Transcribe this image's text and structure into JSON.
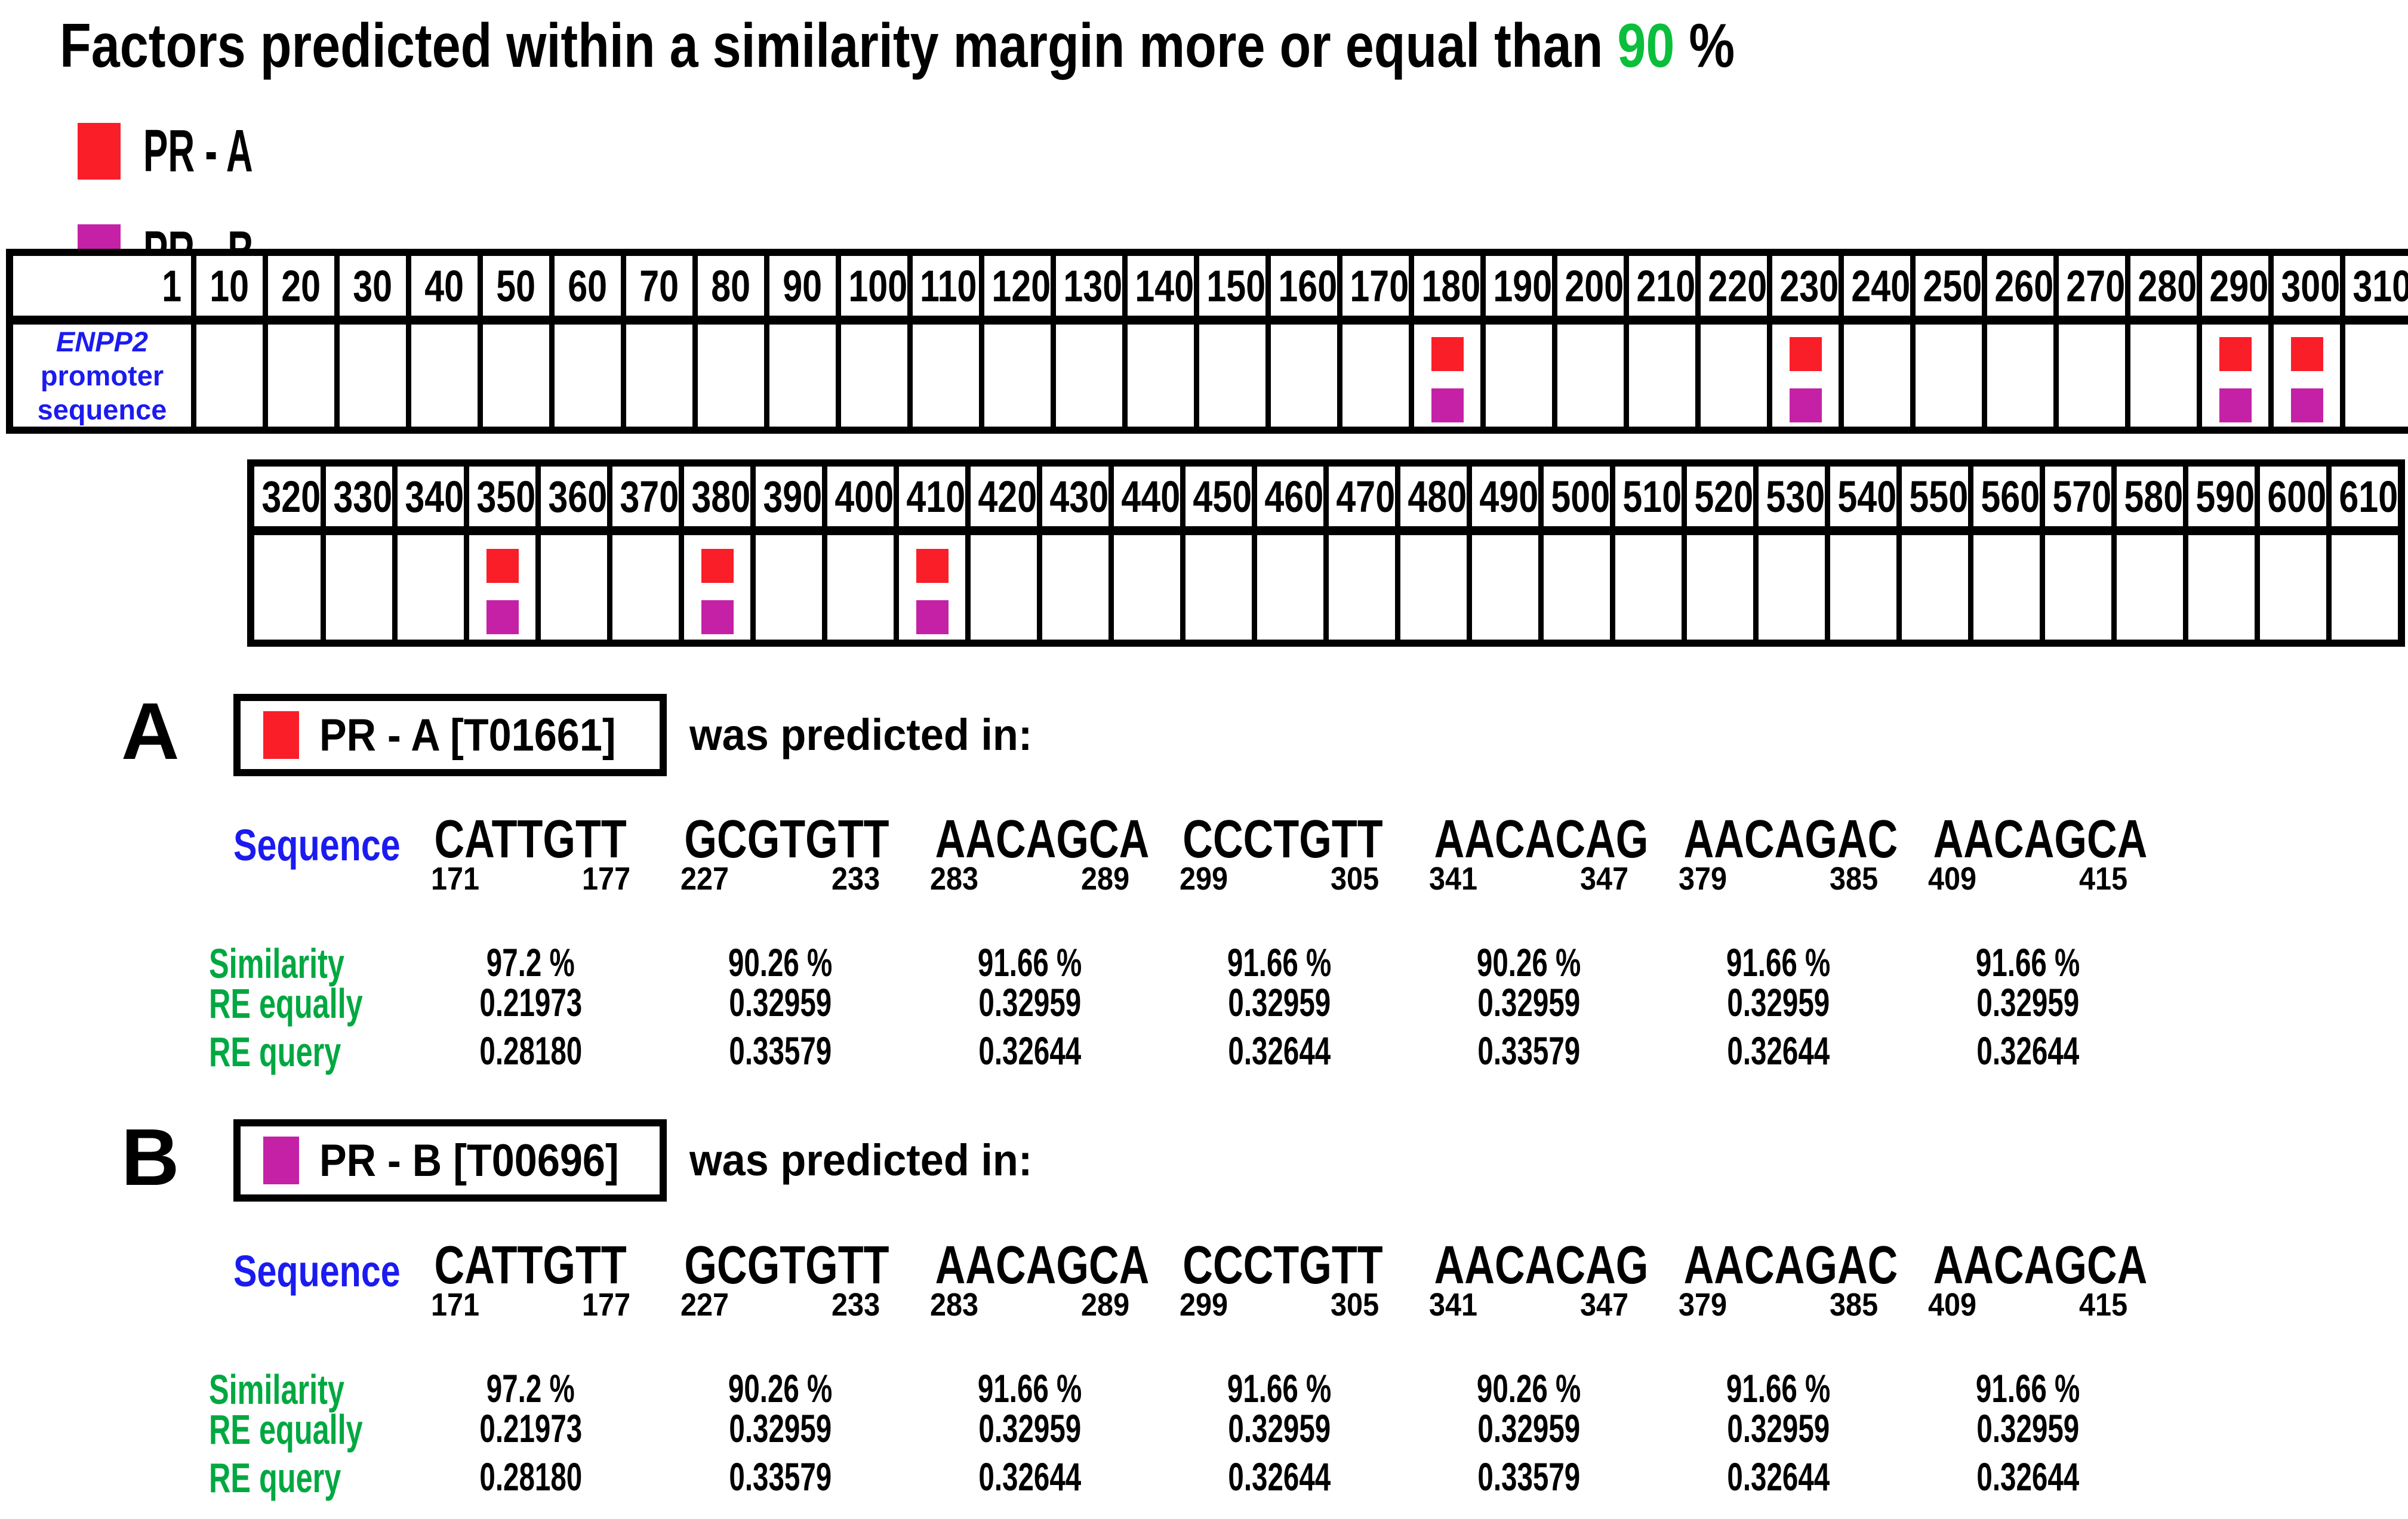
{
  "title": {
    "prefix": "Factors predicted within a similarity margin more or equal than ",
    "threshold": "90",
    "suffix": " %"
  },
  "colors": {
    "pr_a_red": "#fa1e28",
    "pr_b_magenta": "#c421a6",
    "green_threshold": "#0bbe3b",
    "green_labels": "#00a841",
    "blue_labels": "#1b1bf0",
    "black": "#000000"
  },
  "legend": [
    {
      "label": "PR - A",
      "color": "#fa1e28"
    },
    {
      "label": "PR - B",
      "color": "#c421a6"
    }
  ],
  "position_map": {
    "row_label": {
      "gene": "ENPP2",
      "rest": "promoter",
      "line2": "sequence"
    },
    "tables": [
      {
        "first_cell": "1",
        "columns": [
          "10",
          "20",
          "30",
          "40",
          "50",
          "60",
          "70",
          "80",
          "90",
          "100",
          "110",
          "120",
          "130",
          "140",
          "150",
          "160",
          "170",
          "180",
          "190",
          "200",
          "210",
          "220",
          "230",
          "240",
          "250",
          "260",
          "270",
          "280",
          "290",
          "300",
          "310"
        ],
        "marked": [
          "180",
          "230",
          "290",
          "300"
        ]
      },
      {
        "columns": [
          "320",
          "330",
          "340",
          "350",
          "360",
          "370",
          "380",
          "390",
          "400",
          "410",
          "420",
          "430",
          "440",
          "450",
          "460",
          "470",
          "480",
          "490",
          "500",
          "510",
          "520",
          "530",
          "540",
          "550",
          "560",
          "570",
          "580",
          "590",
          "600",
          "610"
        ],
        "marked": [
          "350",
          "380",
          "410"
        ]
      }
    ]
  },
  "labels": {
    "sequence": "Sequence",
    "similarity": "Similarity",
    "re_equally": "RE equally",
    "re_query": "RE query"
  },
  "sections": [
    {
      "letter": "A",
      "factor": "PR - A [T01661]",
      "color": "#fa1e28",
      "predicted": "was predicted in:",
      "hits": [
        {
          "seq": "CATTGTT",
          "start": "171",
          "end": "177",
          "similarity": "97.2 %",
          "re_equally": "0.21973",
          "re_query": "0.28180"
        },
        {
          "seq": "GCGTGTT",
          "start": "227",
          "end": "233",
          "similarity": "90.26 %",
          "re_equally": "0.32959",
          "re_query": "0.33579"
        },
        {
          "seq": "AACAGCA",
          "start": "283",
          "end": "289",
          "similarity": "91.66 %",
          "re_equally": "0.32959",
          "re_query": "0.32644"
        },
        {
          "seq": "CCCTGTT",
          "start": "299",
          "end": "305",
          "similarity": "91.66 %",
          "re_equally": "0.32959",
          "re_query": "0.32644"
        },
        {
          "seq": "AACACAG",
          "start": "341",
          "end": "347",
          "similarity": "90.26 %",
          "re_equally": "0.32959",
          "re_query": "0.33579"
        },
        {
          "seq": "AACAGAC",
          "start": "379",
          "end": "385",
          "similarity": "91.66 %",
          "re_equally": "0.32959",
          "re_query": "0.32644"
        },
        {
          "seq": "AACAGCA",
          "start": "409",
          "end": "415",
          "similarity": "91.66 %",
          "re_equally": "0.32959",
          "re_query": "0.32644"
        }
      ]
    },
    {
      "letter": "B",
      "factor": "PR - B [T00696]",
      "color": "#c421a6",
      "predicted": "was predicted in:",
      "hits": [
        {
          "seq": "CATTGTT",
          "start": "171",
          "end": "177",
          "similarity": "97.2 %",
          "re_equally": "0.21973",
          "re_query": "0.28180"
        },
        {
          "seq": "GCGTGTT",
          "start": "227",
          "end": "233",
          "similarity": "90.26 %",
          "re_equally": "0.32959",
          "re_query": "0.33579"
        },
        {
          "seq": "AACAGCA",
          "start": "283",
          "end": "289",
          "similarity": "91.66 %",
          "re_equally": "0.32959",
          "re_query": "0.32644"
        },
        {
          "seq": "CCCTGTT",
          "start": "299",
          "end": "305",
          "similarity": "91.66 %",
          "re_equally": "0.32959",
          "re_query": "0.32644"
        },
        {
          "seq": "AACACAG",
          "start": "341",
          "end": "347",
          "similarity": "90.26 %",
          "re_equally": "0.32959",
          "re_query": "0.33579"
        },
        {
          "seq": "AACAGAC",
          "start": "379",
          "end": "385",
          "similarity": "91.66 %",
          "re_equally": "0.32959",
          "re_query": "0.32644"
        },
        {
          "seq": "AACAGCA",
          "start": "409",
          "end": "415",
          "similarity": "91.66 %",
          "re_equally": "0.32959",
          "re_query": "0.32644"
        }
      ]
    }
  ]
}
